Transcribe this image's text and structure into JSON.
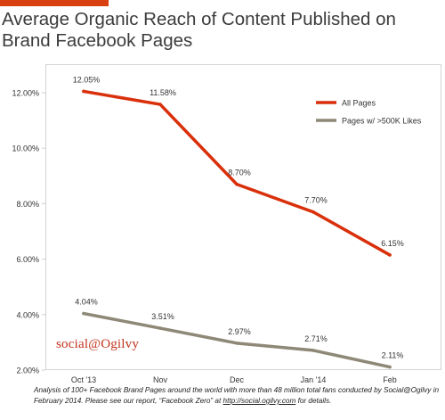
{
  "header": {
    "title": "Average Organic Reach of Content Published on Brand Facebook Pages"
  },
  "logo_text": "social@Ogilvy",
  "footnote": {
    "text": "Analysis of 100+ Facebook Brand Pages around the world with more than 48 million total fans conducted by Social@Ogilvy in February 2014. Please see our report, “Facebook Zero” at",
    "link_text": "http://social.ogilvy.com",
    "suffix": "for details."
  },
  "colors": {
    "accent_bar": "#d9400f",
    "all_pages": "#d9300b",
    "big_pages": "#8e8877"
  },
  "chart_data": {
    "type": "line",
    "title": "Average Organic Reach of Content Published on Brand Facebook Pages",
    "categories": [
      "Oct '13",
      "Nov",
      "Dec",
      "Jan '14",
      "Feb"
    ],
    "ylim": [
      2,
      12
    ],
    "yticks": [
      "2.00%",
      "4.00%",
      "6.00%",
      "8.00%",
      "10.00%",
      "12.00%"
    ],
    "grid": false,
    "legend_position": "top-right",
    "series": [
      {
        "name": "All Pages",
        "color": "#d9300b",
        "values": [
          12.05,
          11.58,
          8.7,
          7.7,
          6.15
        ],
        "labels": [
          "12.05%",
          "11.58%",
          "8.70%",
          "7.70%",
          "6.15%"
        ]
      },
      {
        "name": "Pages w/ >500K Likes",
        "color": "#8e8877",
        "values": [
          4.04,
          3.51,
          2.97,
          2.71,
          2.11
        ],
        "labels": [
          "4.04%",
          "3.51%",
          "2.97%",
          "2.71%",
          "2.11%"
        ]
      }
    ]
  }
}
